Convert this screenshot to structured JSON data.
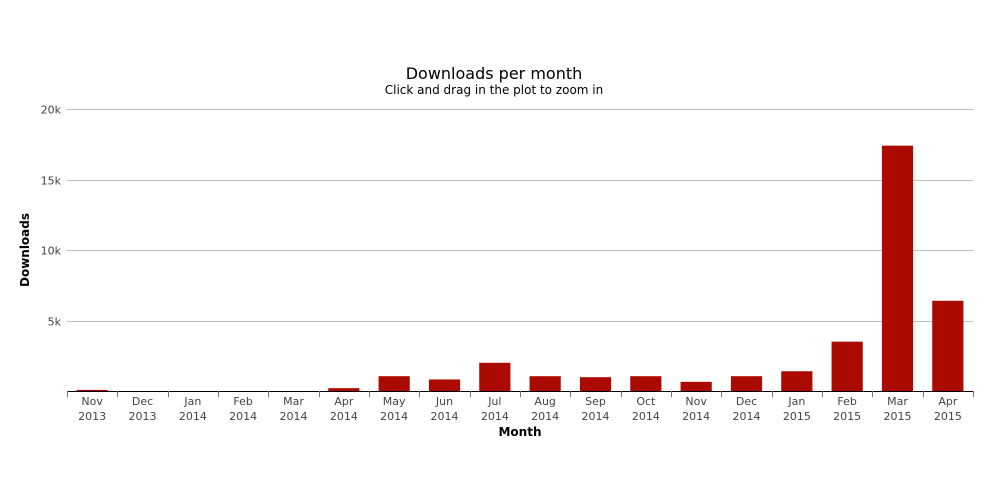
{
  "chart_data": {
    "type": "bar",
    "title": "Downloads per month",
    "subtitle": "Click and drag in the plot to zoom in",
    "xlabel": "Month",
    "ylabel": "Downloads",
    "ylim": [
      0,
      20000
    ],
    "y_ticks": [
      {
        "value": 0,
        "label": ""
      },
      {
        "value": 5000,
        "label": "5k"
      },
      {
        "value": 10000,
        "label": "10k"
      },
      {
        "value": 15000,
        "label": "15k"
      },
      {
        "value": 20000,
        "label": "20k"
      }
    ],
    "grid": true,
    "legend": "none",
    "bar_color": "#aa0a00",
    "categories": [
      {
        "month": "Nov",
        "year": "2013"
      },
      {
        "month": "Dec",
        "year": "2013"
      },
      {
        "month": "Jan",
        "year": "2014"
      },
      {
        "month": "Feb",
        "year": "2014"
      },
      {
        "month": "Mar",
        "year": "2014"
      },
      {
        "month": "Apr",
        "year": "2014"
      },
      {
        "month": "May",
        "year": "2014"
      },
      {
        "month": "Jun",
        "year": "2014"
      },
      {
        "month": "Jul",
        "year": "2014"
      },
      {
        "month": "Aug",
        "year": "2014"
      },
      {
        "month": "Sep",
        "year": "2014"
      },
      {
        "month": "Oct",
        "year": "2014"
      },
      {
        "month": "Nov",
        "year": "2014"
      },
      {
        "month": "Dec",
        "year": "2014"
      },
      {
        "month": "Jan",
        "year": "2015"
      },
      {
        "month": "Feb",
        "year": "2015"
      },
      {
        "month": "Mar",
        "year": "2015"
      },
      {
        "month": "Apr",
        "year": "2015"
      }
    ],
    "values": [
      80,
      0,
      0,
      0,
      0,
      200,
      1050,
      820,
      2000,
      1050,
      980,
      1050,
      650,
      1050,
      1400,
      3500,
      17400,
      6400
    ]
  }
}
